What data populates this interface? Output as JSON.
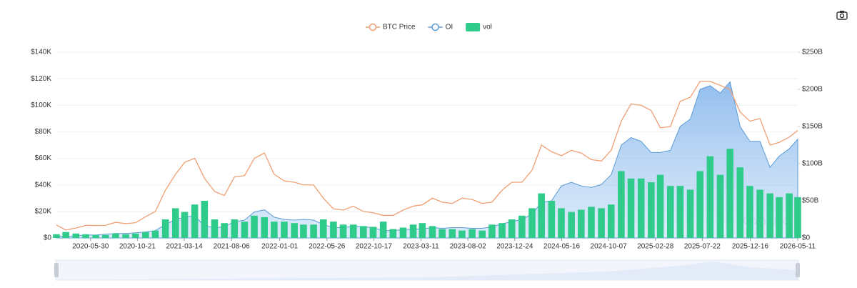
{
  "chart_data": {
    "type": "combo",
    "xlim": [
      "2020-02-13",
      "2026-05-11"
    ],
    "xticks": [
      "2020-05-30",
      "2020-10-21",
      "2021-03-14",
      "2021-08-06",
      "2022-01-01",
      "2022-05-26",
      "2022-10-17",
      "2023-03-11",
      "2023-08-02",
      "2023-12-24",
      "2024-05-16",
      "2024-10-07",
      "2025-02-28",
      "2025-07-22",
      "2025-12-16",
      "2026-05-11"
    ],
    "x": [
      "2020-02-15",
      "2020-03-15",
      "2020-04-15",
      "2020-05-15",
      "2020-06-15",
      "2020-07-15",
      "2020-08-15",
      "2020-09-15",
      "2020-10-15",
      "2020-11-15",
      "2020-12-15",
      "2021-01-15",
      "2021-02-15",
      "2021-03-15",
      "2021-04-15",
      "2021-05-15",
      "2021-06-15",
      "2021-07-15",
      "2021-08-15",
      "2021-09-15",
      "2021-10-15",
      "2021-11-15",
      "2021-12-15",
      "2022-01-15",
      "2022-02-15",
      "2022-03-15",
      "2022-04-15",
      "2022-05-15",
      "2022-06-15",
      "2022-07-15",
      "2022-08-15",
      "2022-09-15",
      "2022-10-15",
      "2022-11-15",
      "2022-12-15",
      "2023-01-15",
      "2023-02-15",
      "2023-03-15",
      "2023-04-15",
      "2023-05-15",
      "2023-06-15",
      "2023-07-15",
      "2023-08-15",
      "2023-09-15",
      "2023-10-15",
      "2023-11-15",
      "2023-12-15",
      "2024-01-15",
      "2024-02-15",
      "2024-03-15",
      "2024-04-15",
      "2024-05-15",
      "2024-06-15",
      "2024-07-15",
      "2024-08-15",
      "2024-09-15",
      "2024-10-15",
      "2024-11-15",
      "2024-12-15",
      "2025-01-15",
      "2025-02-15",
      "2025-03-15",
      "2025-04-15",
      "2025-05-15",
      "2025-06-15",
      "2025-07-15",
      "2025-08-15",
      "2025-09-15",
      "2025-10-15",
      "2025-11-15",
      "2025-12-15",
      "2026-01-15",
      "2026-02-15",
      "2026-03-15",
      "2026-04-15",
      "2026-05-11"
    ],
    "ylim": [
      0,
      140000
    ],
    "yticks": [
      {
        "value": 0,
        "label": "$0"
      },
      {
        "value": 20000,
        "label": "$20K"
      },
      {
        "value": 40000,
        "label": "$40K"
      },
      {
        "value": 60000,
        "label": "$60K"
      },
      {
        "value": 80000,
        "label": "$80K"
      },
      {
        "value": 100000,
        "label": "$100K"
      },
      {
        "value": 120000,
        "label": "$120K"
      },
      {
        "value": 140000,
        "label": "$140K"
      }
    ],
    "y2lim": [
      0,
      250
    ],
    "y2ticks": [
      {
        "value": 0,
        "label": "$0"
      },
      {
        "value": 50,
        "label": "$50B"
      },
      {
        "value": 100,
        "label": "$100B"
      },
      {
        "value": 150,
        "label": "$150B"
      },
      {
        "value": 200,
        "label": "$200B"
      },
      {
        "value": 250,
        "label": "$250B"
      }
    ],
    "grid": true,
    "watermark": "CoinAnk",
    "series": [
      {
        "name": "BTC Price",
        "type": "line",
        "color": "#ef9f72",
        "values": [
          9800,
          6000,
          7500,
          9500,
          9400,
          9500,
          11800,
          10800,
          11500,
          16000,
          20000,
          36000,
          48000,
          57000,
          60000,
          45000,
          35000,
          32000,
          46000,
          47000,
          60000,
          64000,
          48000,
          43000,
          42000,
          40000,
          40000,
          30000,
          22000,
          21000,
          24000,
          20000,
          19000,
          17000,
          17000,
          21000,
          24000,
          25000,
          30000,
          27000,
          26000,
          30000,
          29000,
          26000,
          27000,
          36000,
          42000,
          42000,
          51000,
          70000,
          65000,
          62000,
          66000,
          64000,
          59000,
          58000,
          66000,
          88000,
          101000,
          100000,
          96000,
          83000,
          84000,
          103000,
          106000,
          118000,
          118000,
          115000,
          112000,
          95000,
          88000,
          90000,
          70000,
          72000,
          76000,
          81000
        ]
      },
      {
        "name": "OI",
        "type": "area",
        "axis": "y2",
        "color": "#5b9bd5",
        "values": [
          3,
          2,
          3,
          4,
          4,
          5,
          6,
          6,
          7,
          8,
          10,
          18,
          25,
          28,
          30,
          16,
          14,
          15,
          22,
          24,
          35,
          38,
          28,
          25,
          24,
          25,
          24,
          18,
          14,
          14,
          16,
          15,
          14,
          10,
          10,
          11,
          12,
          12,
          14,
          13,
          14,
          14,
          13,
          13,
          15,
          19,
          22,
          25,
          32,
          48,
          50,
          70,
          75,
          70,
          68,
          72,
          85,
          125,
          135,
          130,
          115,
          115,
          118,
          150,
          160,
          200,
          205,
          195,
          210,
          150,
          130,
          130,
          95,
          110,
          120,
          133
        ]
      },
      {
        "name": "vol",
        "type": "bar",
        "axis": "y2",
        "color": "#2fcb8a",
        "values": [
          5,
          8,
          6,
          5,
          4,
          4,
          6,
          5,
          6,
          8,
          10,
          25,
          40,
          35,
          45,
          50,
          25,
          20,
          25,
          22,
          30,
          28,
          22,
          22,
          20,
          18,
          18,
          25,
          22,
          18,
          18,
          16,
          15,
          22,
          12,
          14,
          18,
          20,
          16,
          12,
          12,
          10,
          12,
          10,
          18,
          20,
          25,
          30,
          40,
          60,
          50,
          40,
          35,
          38,
          42,
          40,
          45,
          90,
          80,
          80,
          75,
          85,
          70,
          70,
          65,
          90,
          110,
          85,
          120,
          95,
          70,
          65,
          60,
          55,
          60,
          55
        ]
      }
    ]
  }
}
